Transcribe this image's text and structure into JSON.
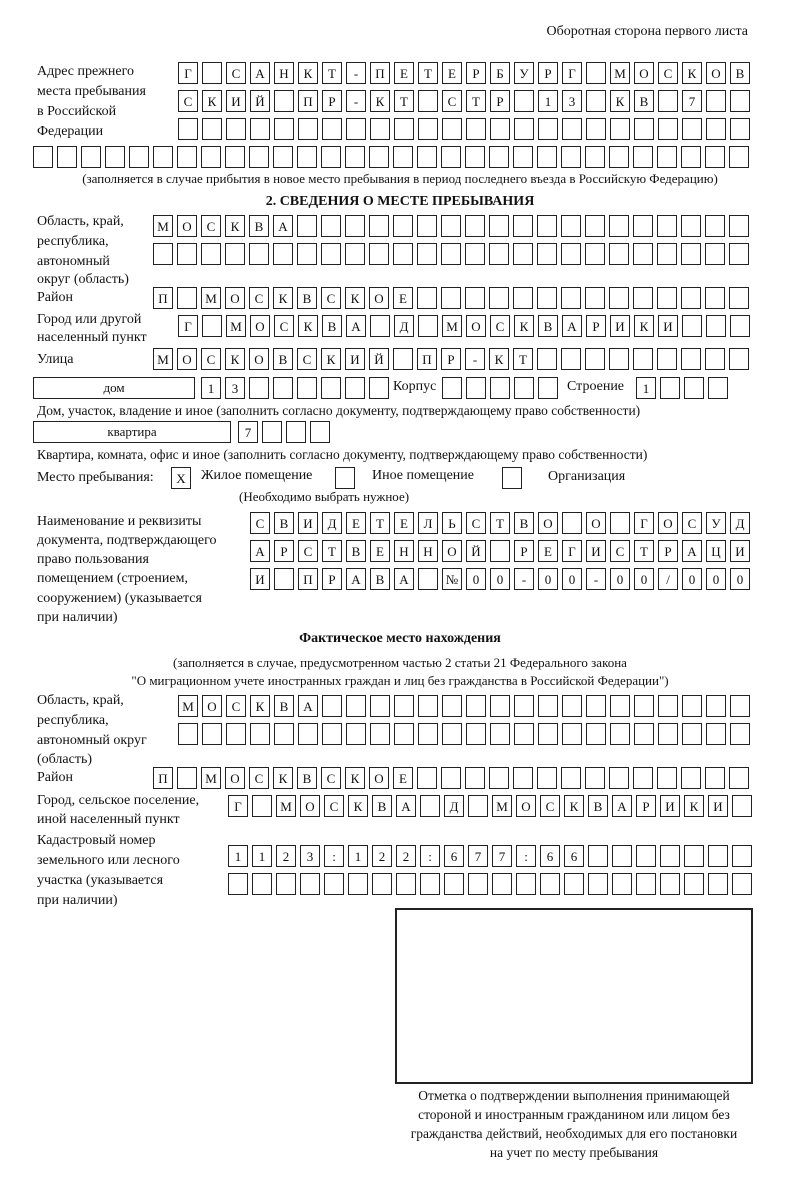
{
  "header": {
    "page_side": "Оборотная сторона первого листа"
  },
  "prev_address": {
    "label": [
      "Адрес прежнего",
      "места пребывания",
      "в Российской",
      "Федерации"
    ],
    "rows": [
      [
        "Г",
        "",
        "С",
        "А",
        "Н",
        "К",
        "Т",
        "-",
        "П",
        "Е",
        "Т",
        "Е",
        "Р",
        "Б",
        "У",
        "Р",
        "Г",
        "",
        "М",
        "О",
        "С",
        "К",
        "О",
        "В"
      ],
      [
        "С",
        "К",
        "И",
        "Й",
        "",
        "П",
        "Р",
        "-",
        "К",
        "Т",
        "",
        "С",
        "Т",
        "Р",
        "",
        "1",
        "3",
        "",
        "К",
        "В",
        "",
        "7",
        "",
        ""
      ],
      [
        "",
        "",
        "",
        "",
        "",
        "",
        "",
        "",
        "",
        "",
        "",
        "",
        "",
        "",
        "",
        "",
        "",
        "",
        "",
        "",
        "",
        "",
        "",
        ""
      ],
      [
        "",
        "",
        "",
        "",
        "",
        "",
        "",
        "",
        "",
        "",
        "",
        "",
        "",
        "",
        "",
        "",
        "",
        "",
        "",
        "",
        "",
        "",
        "",
        "",
        "",
        "",
        "",
        "",
        "",
        ""
      ]
    ],
    "note": "(заполняется в случае прибытия в новое место пребывания в период последнего въезда в Российскую Федерацию)"
  },
  "section2": {
    "title": "2. СВЕДЕНИЯ О МЕСТЕ ПРЕБЫВАНИЯ",
    "region_label": [
      "Область, край,",
      "республика,",
      "автономный",
      "округ (область)"
    ],
    "region_rows": [
      [
        "М",
        "О",
        "С",
        "К",
        "В",
        "А",
        "",
        "",
        "",
        "",
        "",
        "",
        "",
        "",
        "",
        "",
        "",
        "",
        "",
        "",
        "",
        "",
        "",
        "",
        ""
      ],
      [
        "",
        "",
        "",
        "",
        "",
        "",
        "",
        "",
        "",
        "",
        "",
        "",
        "",
        "",
        "",
        "",
        "",
        "",
        "",
        "",
        "",
        "",
        "",
        "",
        ""
      ]
    ],
    "district_label": "Район",
    "district_row": [
      "П",
      "",
      "М",
      "О",
      "С",
      "К",
      "В",
      "С",
      "К",
      "О",
      "Е",
      "",
      "",
      "",
      "",
      "",
      "",
      "",
      "",
      "",
      "",
      "",
      "",
      "",
      ""
    ],
    "city_label": [
      "Город или другой",
      "населенный пункт"
    ],
    "city_row": [
      "Г",
      "",
      "М",
      "О",
      "С",
      "К",
      "В",
      "А",
      "",
      "Д",
      "",
      "М",
      "О",
      "С",
      "К",
      "В",
      "А",
      "Р",
      "И",
      "К",
      "И",
      "",
      "",
      ""
    ],
    "street_label": "Улица",
    "street_row": [
      "М",
      "О",
      "С",
      "К",
      "О",
      "В",
      "С",
      "К",
      "И",
      "Й",
      "",
      "П",
      "Р",
      "-",
      "К",
      "Т",
      "",
      "",
      "",
      "",
      "",
      "",
      "",
      "",
      ""
    ],
    "house_type": "дом",
    "house_row": [
      "1",
      "3",
      "",
      "",
      "",
      "",
      "",
      ""
    ],
    "korpus_label": "Корпус",
    "korpus_row": [
      "",
      "",
      "",
      "",
      ""
    ],
    "building_label": "Строение",
    "building_row": [
      "1",
      "",
      "",
      ""
    ],
    "house_note": "Дом, участок, владение и иное (заполнить согласно документу, подтверждающему право собственности)",
    "apt_type": "квартира",
    "apt_row": [
      "7",
      "",
      "",
      ""
    ],
    "apt_note": "Квартира, комната, офис и иное (заполнить согласно документу, подтверждающему право собственности)",
    "place_label": "Место пребывания:",
    "place_options": [
      {
        "label": "Жилое помещение",
        "mark": "X"
      },
      {
        "label": "Иное помещение",
        "mark": ""
      },
      {
        "label": "Организация",
        "mark": ""
      }
    ],
    "place_note": "(Необходимо выбрать нужное)",
    "doc_label": [
      "Наименование и реквизиты",
      "документа, подтверждающего",
      "право пользования",
      "помещением (строением,",
      "сооружением) (указывается",
      "при наличии)"
    ],
    "doc_rows": [
      [
        "С",
        "В",
        "И",
        "Д",
        "Е",
        "Т",
        "Е",
        "Л",
        "Ь",
        "С",
        "Т",
        "В",
        "О",
        "",
        "О",
        "",
        "Г",
        "О",
        "С",
        "У",
        "Д"
      ],
      [
        "А",
        "Р",
        "С",
        "Т",
        "В",
        "Е",
        "Н",
        "Н",
        "О",
        "Й",
        "",
        "Р",
        "Е",
        "Г",
        "И",
        "С",
        "Т",
        "Р",
        "А",
        "Ц",
        "И"
      ],
      [
        "И",
        "",
        "П",
        "Р",
        "А",
        "В",
        "А",
        "",
        "№",
        "0",
        "0",
        "-",
        "0",
        "0",
        "-",
        "0",
        "0",
        "/",
        "0",
        "0",
        "0"
      ]
    ]
  },
  "actual": {
    "title": "Фактическое место нахождения",
    "note": [
      "(заполняется в случае, предусмотренном частью 2 статьи 21 Федерального закона",
      "\"О миграционном учете иностранных граждан и лиц без гражданства в Российской Федерации\")"
    ],
    "region_label": [
      "Область, край,",
      "республика,",
      "автономный округ",
      "(область)"
    ],
    "region_rows": [
      [
        "М",
        "О",
        "С",
        "К",
        "В",
        "А",
        "",
        "",
        "",
        "",
        "",
        "",
        "",
        "",
        "",
        "",
        "",
        "",
        "",
        "",
        "",
        "",
        "",
        ""
      ],
      [
        "",
        "",
        "",
        "",
        "",
        "",
        "",
        "",
        "",
        "",
        "",
        "",
        "",
        "",
        "",
        "",
        "",
        "",
        "",
        "",
        "",
        "",
        "",
        ""
      ]
    ],
    "district_label": "Район",
    "district_row": [
      "П",
      "",
      "М",
      "О",
      "С",
      "К",
      "В",
      "С",
      "К",
      "О",
      "Е",
      "",
      "",
      "",
      "",
      "",
      "",
      "",
      "",
      "",
      "",
      "",
      "",
      "",
      ""
    ],
    "city_label": [
      "Город, сельское поселение,",
      "иной населенный пункт"
    ],
    "city_row": [
      "Г",
      "",
      "М",
      "О",
      "С",
      "К",
      "В",
      "А",
      "",
      "Д",
      "",
      "М",
      "О",
      "С",
      "К",
      "В",
      "А",
      "Р",
      "И",
      "К",
      "И",
      ""
    ],
    "cadastral_label": [
      "Кадастровый номер",
      "земельного или лесного",
      "участка (указывается",
      "при наличии)"
    ],
    "cadastral_rows": [
      [
        "1",
        "1",
        "2",
        "3",
        ":",
        "1",
        "2",
        "2",
        ":",
        "6",
        "7",
        "7",
        ":",
        "6",
        "6",
        "",
        "",
        "",
        "",
        "",
        "",
        ""
      ],
      [
        "",
        "",
        "",
        "",
        "",
        "",
        "",
        "",
        "",
        "",
        "",
        "",
        "",
        "",
        "",
        "",
        "",
        "",
        "",
        "",
        "",
        ""
      ]
    ]
  },
  "confirmation": {
    "caption": [
      "Отметка о подтверждении выполнения принимающей",
      "стороной и иностранным гражданином или лицом без",
      "гражданства действий, необходимых для его постановки",
      "на учет по месту пребывания"
    ]
  }
}
